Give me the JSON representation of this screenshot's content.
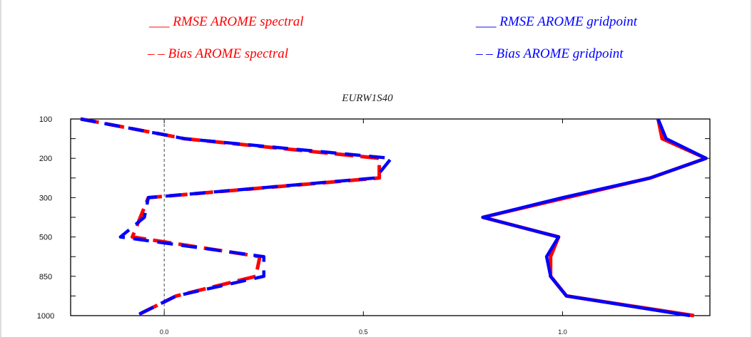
{
  "chart_data": {
    "type": "line",
    "title": "EURW1S40",
    "xlabel": "",
    "ylabel": "",
    "x_ticks": [
      "0.0",
      "0.5",
      "1.0"
    ],
    "y_ticks": [
      "100",
      "200",
      "300",
      "500",
      "850",
      "1000"
    ],
    "xlim": [
      -0.235,
      1.37
    ],
    "ylim": [
      "100",
      "1000"
    ],
    "y_categorical_levels": [
      100,
      150,
      200,
      250,
      300,
      350,
      500,
      700,
      850,
      925,
      1000
    ],
    "grid": false,
    "legend_placement": "top",
    "series": [
      {
        "name": "RMSE AROME spectral",
        "legend_label": "___ RMSE AROME spectral",
        "color": "#ff0000",
        "dash": "solid",
        "x": [
          1.24,
          1.25,
          1.36,
          1.22,
          1.01,
          0.8,
          0.99,
          0.97,
          0.97,
          1.01,
          1.33
        ],
        "y": [
          100,
          150,
          200,
          250,
          300,
          350,
          500,
          700,
          850,
          925,
          1000
        ]
      },
      {
        "name": "Bias AROME spectral",
        "legend_label": "– – Bias AROME spectral",
        "color": "#ff0000",
        "dash": "dashed",
        "x": [
          -0.21,
          0.0,
          0.05,
          0.54,
          0.54,
          -0.04,
          -0.06,
          -0.08,
          0.24,
          0.23,
          0.03,
          -0.07
        ],
        "y": [
          100,
          140,
          150,
          200,
          250,
          300,
          350,
          500,
          700,
          850,
          925,
          1000
        ]
      },
      {
        "name": "RMSE AROME gridpoint",
        "legend_label": "___ RMSE AROME gridpoint",
        "color": "#0000ff",
        "dash": "solid",
        "x": [
          1.24,
          1.26,
          1.36,
          1.22,
          1.0,
          0.8,
          0.99,
          0.96,
          0.97,
          1.01,
          1.32
        ],
        "y": [
          100,
          150,
          200,
          250,
          300,
          350,
          500,
          700,
          850,
          925,
          1000
        ]
      },
      {
        "name": "Bias AROME gridpoint",
        "legend_label": "– – Bias AROME gridpoint",
        "color": "#0000ff",
        "dash": "dashed",
        "x": [
          -0.21,
          0.0,
          0.05,
          0.57,
          0.53,
          -0.04,
          -0.05,
          -0.11,
          0.25,
          0.25,
          0.03,
          -0.07
        ],
        "y": [
          100,
          140,
          150,
          200,
          250,
          300,
          350,
          500,
          700,
          850,
          925,
          1000
        ]
      }
    ],
    "reference_line": {
      "x": 0.0,
      "style": "dashed",
      "color": "#444444"
    }
  }
}
